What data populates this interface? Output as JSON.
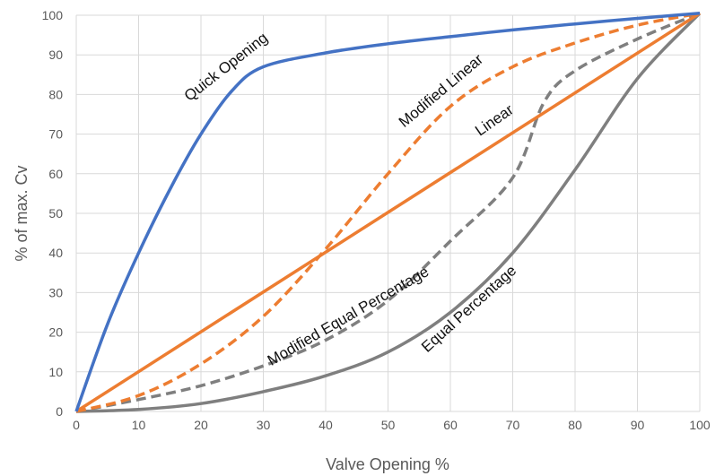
{
  "chart_data": {
    "type": "line",
    "xlabel": "Valve Opening %",
    "ylabel": "% of max. Cv",
    "xlim": [
      0,
      100
    ],
    "ylim": [
      0,
      100
    ],
    "x_ticks": [
      0,
      10,
      20,
      30,
      40,
      50,
      60,
      70,
      80,
      90,
      100
    ],
    "y_ticks": [
      0,
      10,
      20,
      30,
      40,
      50,
      60,
      70,
      80,
      90,
      100
    ],
    "grid": "vertical and horizontal",
    "legend": "none (curves labeled directly)",
    "series": [
      {
        "name": "Quick Opening",
        "color": "#4472C4",
        "dash": "solid",
        "x": [
          0,
          5,
          10,
          15,
          20,
          25,
          30,
          40,
          50,
          60,
          70,
          80,
          90,
          100
        ],
        "y": [
          0,
          22,
          40,
          56,
          70,
          81,
          87,
          90.5,
          92.8,
          94.6,
          96.3,
          97.8,
          99.2,
          100.5
        ]
      },
      {
        "name": "Modified Linear",
        "color": "#ED7D31",
        "dash": "dashed",
        "x": [
          0,
          10,
          20,
          30,
          40,
          50,
          60,
          70,
          80,
          90,
          100
        ],
        "y": [
          0,
          4,
          12,
          24,
          41,
          60,
          77,
          87,
          93,
          97.5,
          100.5
        ]
      },
      {
        "name": "Linear",
        "color": "#ED7D31",
        "dash": "solid",
        "x": [
          0,
          100
        ],
        "y": [
          0,
          100.5
        ]
      },
      {
        "name": "Modified Equal Percentage",
        "color": "#7F7F7F",
        "dash": "dashed",
        "x": [
          0,
          10,
          20,
          30,
          40,
          50,
          60,
          70,
          75,
          80,
          90,
          100
        ],
        "y": [
          0,
          3,
          6.5,
          11.5,
          18,
          28,
          43,
          59,
          78,
          86,
          94,
          100.5
        ]
      },
      {
        "name": "Equal Percentage",
        "color": "#7F7F7F",
        "dash": "solid",
        "x": [
          0,
          10,
          20,
          30,
          40,
          50,
          60,
          70,
          80,
          90,
          100
        ],
        "y": [
          0,
          0.5,
          2,
          5,
          9,
          15,
          25,
          40,
          61,
          84,
          100.5
        ]
      }
    ],
    "annotations": [
      {
        "text": "Quick Opening",
        "series": "Quick Opening"
      },
      {
        "text": "Modified Linear",
        "series": "Modified Linear"
      },
      {
        "text": "Linear",
        "series": "Linear"
      },
      {
        "text": "Modified Equal Percentage",
        "series": "Modified Equal Percentage"
      },
      {
        "text": "Equal Percentage",
        "series": "Equal Percentage"
      }
    ]
  }
}
